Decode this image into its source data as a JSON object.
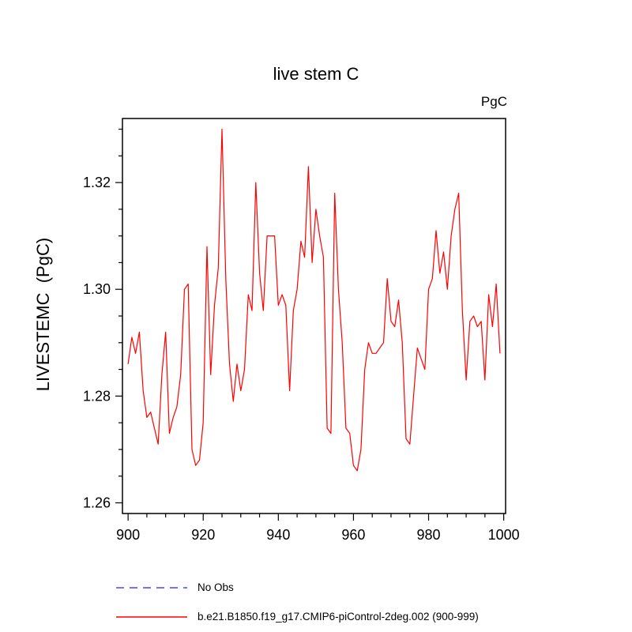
{
  "title": "live stem C",
  "units_label": "PgC",
  "legend": [
    {
      "label": "No Obs",
      "color": "#4444ff",
      "dash": true
    },
    {
      "label": "b.e21.B1850.f19_g17.CMIP6-piControl-2deg.002 (900-999)",
      "color": "#ff0000",
      "dash": false
    }
  ],
  "chart_data": {
    "type": "line",
    "title": "live stem C",
    "xlabel": "",
    "ylabel": "LIVESTEMC  (PgC)",
    "units": "PgC",
    "xlim": [
      898.5,
      1000.5
    ],
    "ylim": [
      1.258,
      1.332
    ],
    "x_ticks": [
      900,
      920,
      940,
      960,
      980,
      1000
    ],
    "y_ticks": [
      1.26,
      1.28,
      1.3,
      1.32
    ],
    "x_minor_step": 5,
    "y_minor_step": 0.005,
    "grid": false,
    "legend_position": "bottom",
    "series": [
      {
        "name": "b.e21.B1850.f19_g17.CMIP6-piControl-2deg.002 (900-999)",
        "color": "#ff0000",
        "x_start": 900,
        "x_step": 1,
        "values": [
          1.286,
          1.291,
          1.288,
          1.292,
          1.281,
          1.276,
          1.277,
          1.274,
          1.271,
          1.284,
          1.292,
          1.273,
          1.276,
          1.278,
          1.284,
          1.3,
          1.301,
          1.27,
          1.267,
          1.268,
          1.275,
          1.308,
          1.284,
          1.297,
          1.304,
          1.33,
          1.302,
          1.286,
          1.279,
          1.286,
          1.281,
          1.285,
          1.299,
          1.296,
          1.32,
          1.303,
          1.296,
          1.31,
          1.31,
          1.31,
          1.297,
          1.299,
          1.297,
          1.281,
          1.296,
          1.3,
          1.309,
          1.306,
          1.323,
          1.305,
          1.315,
          1.31,
          1.306,
          1.274,
          1.273,
          1.318,
          1.3,
          1.29,
          1.274,
          1.273,
          1.267,
          1.266,
          1.27,
          1.285,
          1.29,
          1.288,
          1.288,
          1.289,
          1.29,
          1.302,
          1.294,
          1.293,
          1.298,
          1.29,
          1.272,
          1.271,
          1.28,
          1.289,
          1.287,
          1.285,
          1.3,
          1.302,
          1.311,
          1.303,
          1.307,
          1.3,
          1.31,
          1.315,
          1.318,
          1.296,
          1.283,
          1.294,
          1.295,
          1.293,
          1.294,
          1.283,
          1.299,
          1.293,
          1.301,
          1.288
        ]
      }
    ]
  }
}
